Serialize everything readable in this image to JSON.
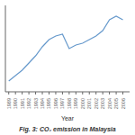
{
  "chart_data": {
    "type": "line",
    "title": "Fig. 3: CO₂ emission in Malaysia",
    "xlabel": "Year",
    "x": [
      1989,
      1990,
      1991,
      1992,
      1993,
      1994,
      1995,
      1996,
      1997,
      1998,
      1999,
      2000,
      2001,
      2002,
      2003,
      2004,
      2005,
      2006
    ],
    "values": [
      0.1,
      0.13,
      0.16,
      0.2,
      0.24,
      0.29,
      0.33,
      0.35,
      0.36,
      0.28,
      0.3,
      0.31,
      0.33,
      0.35,
      0.38,
      0.44,
      0.46,
      0.44
    ],
    "color": "#6699cc",
    "xlim": [
      1988.5,
      2007.0
    ],
    "xticks": [
      1989,
      1990,
      1991,
      1992,
      1993,
      1994,
      1995,
      1996,
      1997,
      1998,
      1999,
      2000,
      2001,
      2002,
      2003,
      2004,
      2005,
      2006
    ],
    "ylim": [
      0.04,
      0.52
    ],
    "grid": false,
    "tick_labels": "x"
  }
}
